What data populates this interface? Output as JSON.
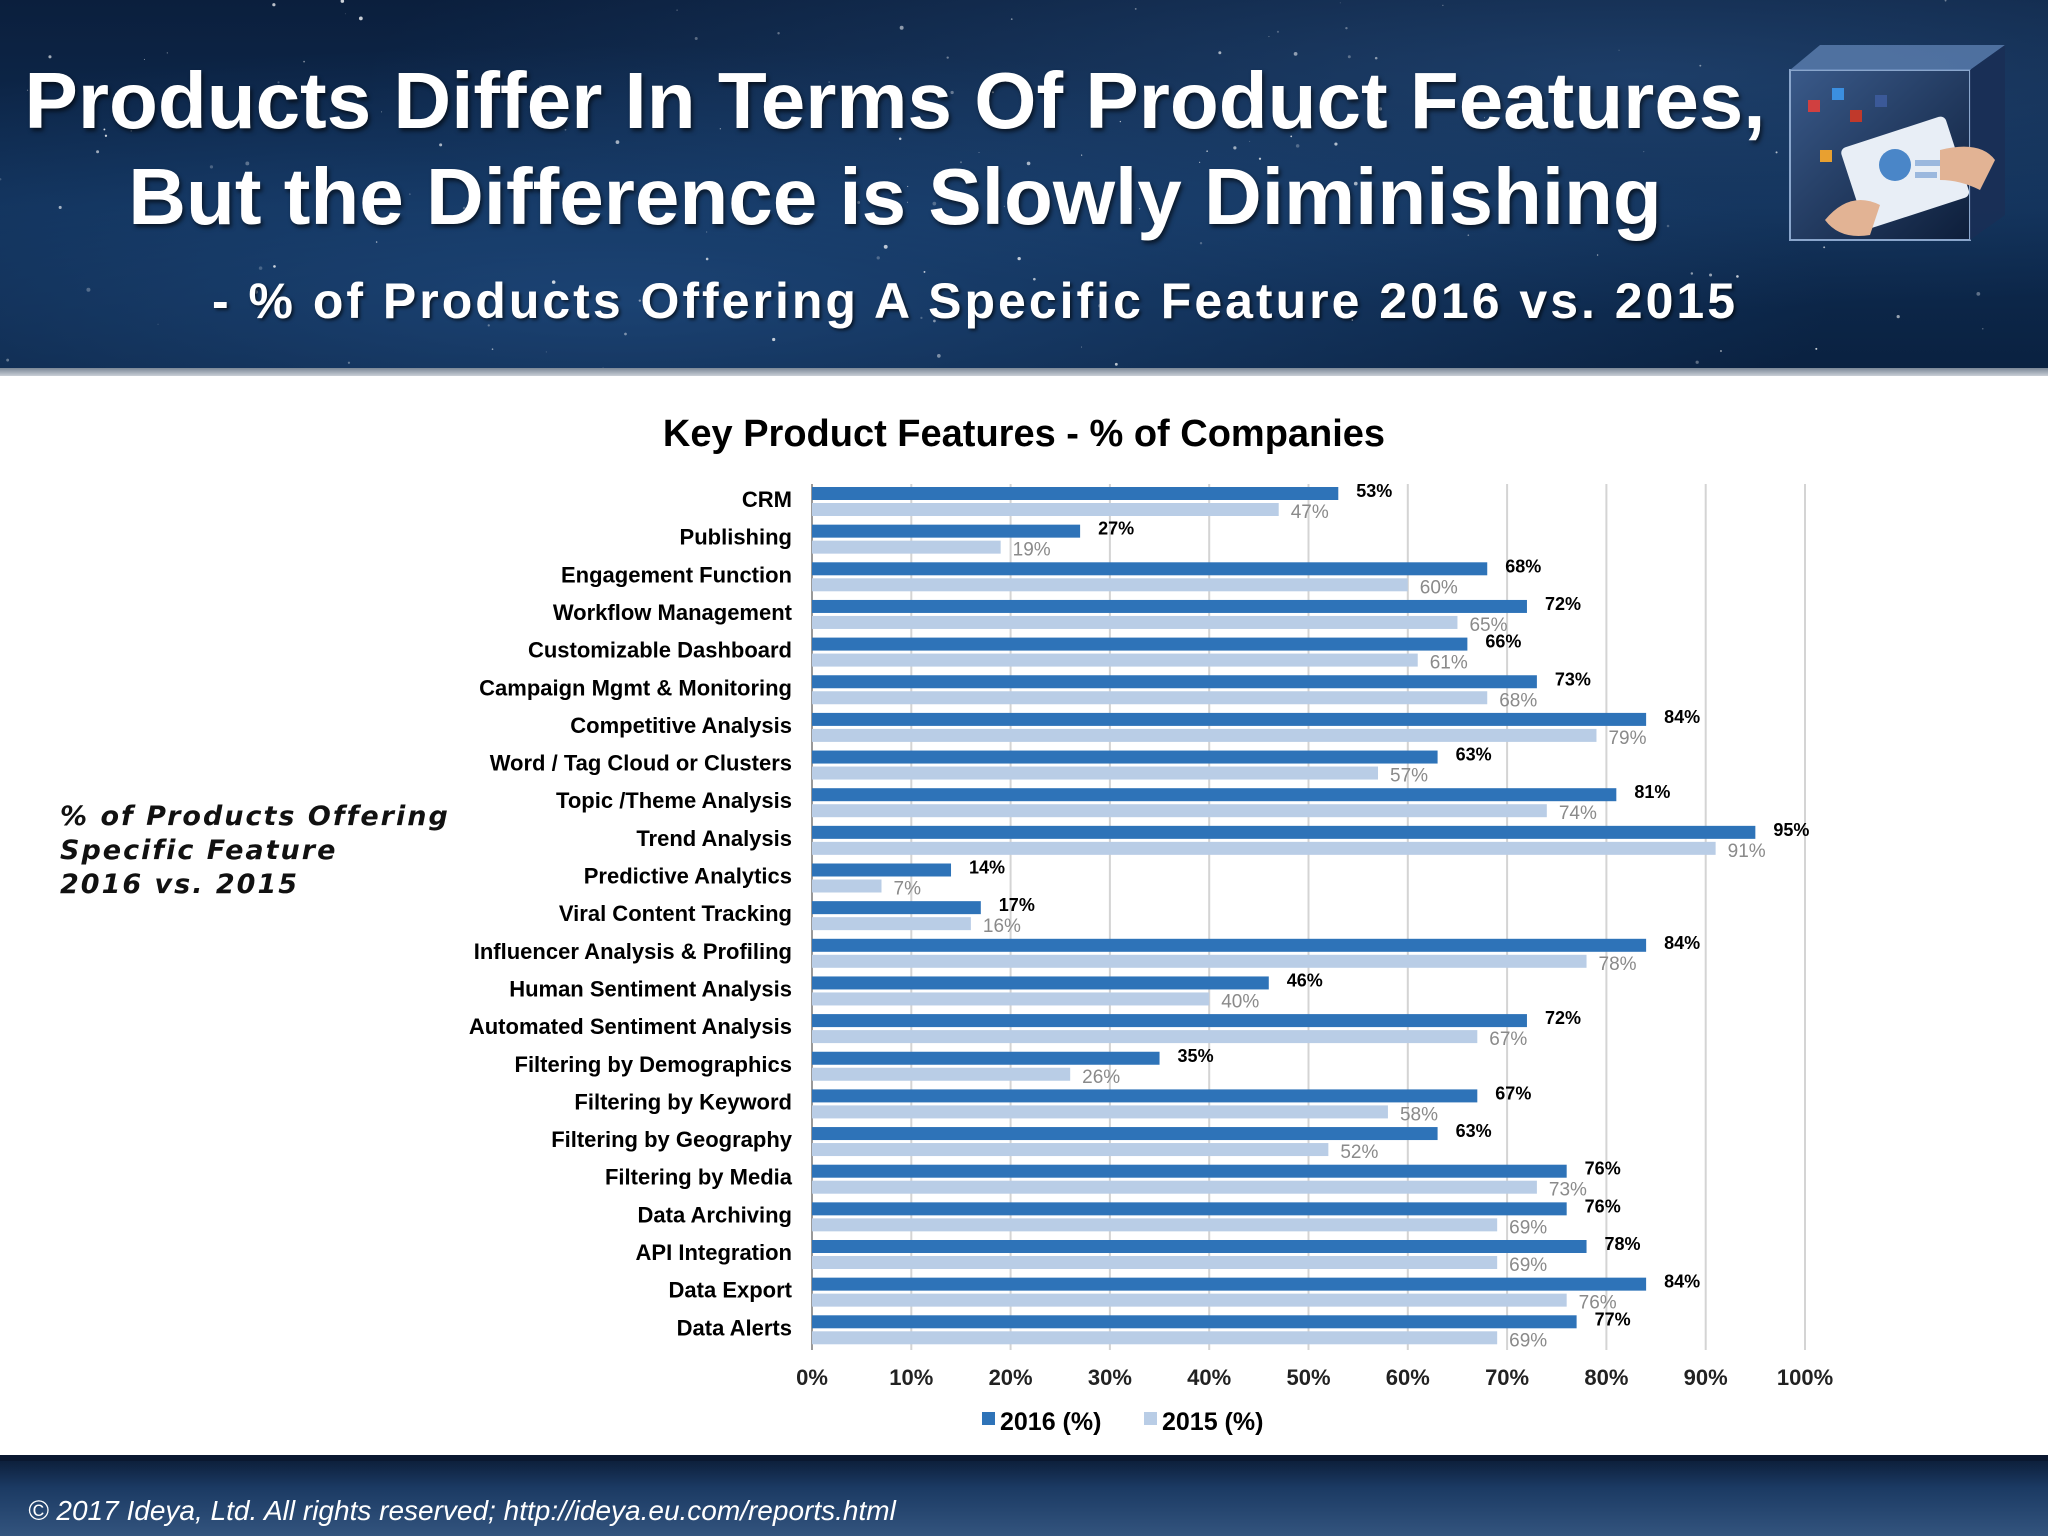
{
  "header": {
    "title_line1": "Products Differ In Terms Of Product Features,",
    "title_line2": "But the Difference is Slowly Diminishing",
    "subtitle": "- % of Products Offering A Specific Feature 2016 vs. 2015",
    "image_icon": "tablet-social-cube-icon"
  },
  "side_note": {
    "line1": "% of Products Offering",
    "line2": "Specific Feature",
    "line3": "2016 vs. 2015"
  },
  "footer": {
    "text": "© 2017 Ideya, Ltd. All rights reserved;  http://ideya.eu.com/reports.html"
  },
  "colors": {
    "series_2016": "#2e73b8",
    "series_2015": "#b9cde6",
    "grid": "#d4d4d4"
  },
  "chart_data": {
    "type": "bar",
    "orientation": "horizontal",
    "title": "Key Product Features - % of Companies",
    "categories": [
      "CRM",
      "Publishing",
      "Engagement Function",
      "Workflow Management",
      "Customizable Dashboard",
      "Campaign Mgmt & Monitoring",
      "Competitive Analysis",
      "Word / Tag Cloud or Clusters",
      "Topic /Theme Analysis",
      "Trend Analysis",
      "Predictive Analytics",
      "Viral Content Tracking",
      "Influencer Analysis & Profiling",
      "Human Sentiment Analysis",
      "Automated Sentiment Analysis",
      "Filtering by Demographics",
      "Filtering by Keyword",
      "Filtering by Geography",
      "Filtering by Media",
      "Data Archiving",
      "API Integration ",
      "Data Export",
      "Data Alerts"
    ],
    "series": [
      {
        "name": "2016 (%)",
        "values": [
          53,
          27,
          68,
          72,
          66,
          73,
          84,
          63,
          81,
          95,
          14,
          17,
          84,
          46,
          72,
          35,
          67,
          63,
          76,
          76,
          78,
          84,
          77
        ],
        "labels": [
          "53%",
          "27%",
          "68%",
          "72%",
          "66%",
          "73%",
          "84%",
          "63%",
          "81%",
          "95%",
          "14%",
          "17%",
          "84%",
          "46%",
          "72%",
          "35%",
          "67%",
          "63%",
          "76%",
          "76%",
          "78%",
          "84%",
          "77%"
        ]
      },
      {
        "name": "2015 (%)",
        "values": [
          47,
          19,
          60,
          65,
          61,
          68,
          79,
          57,
          74,
          91,
          7,
          16,
          78,
          40,
          67,
          26,
          58,
          52,
          73,
          69,
          69,
          76,
          69
        ],
        "labels": [
          "47%",
          "19%",
          "60%",
          "65%",
          "61%",
          "68%",
          "79%",
          "57%",
          "74%",
          "91%",
          "7%",
          "16%",
          "78%",
          "40%",
          "67%",
          "26%",
          "58%",
          "52%",
          "73%",
          "69%",
          "69%",
          "76%",
          "69%"
        ]
      }
    ],
    "xlim": [
      0,
      100
    ],
    "x_ticks": [
      "0%",
      "10%",
      "20%",
      "30%",
      "40%",
      "50%",
      "60%",
      "70%",
      "80%",
      "90%",
      "100%"
    ],
    "grid": true,
    "legend_position": "bottom"
  }
}
